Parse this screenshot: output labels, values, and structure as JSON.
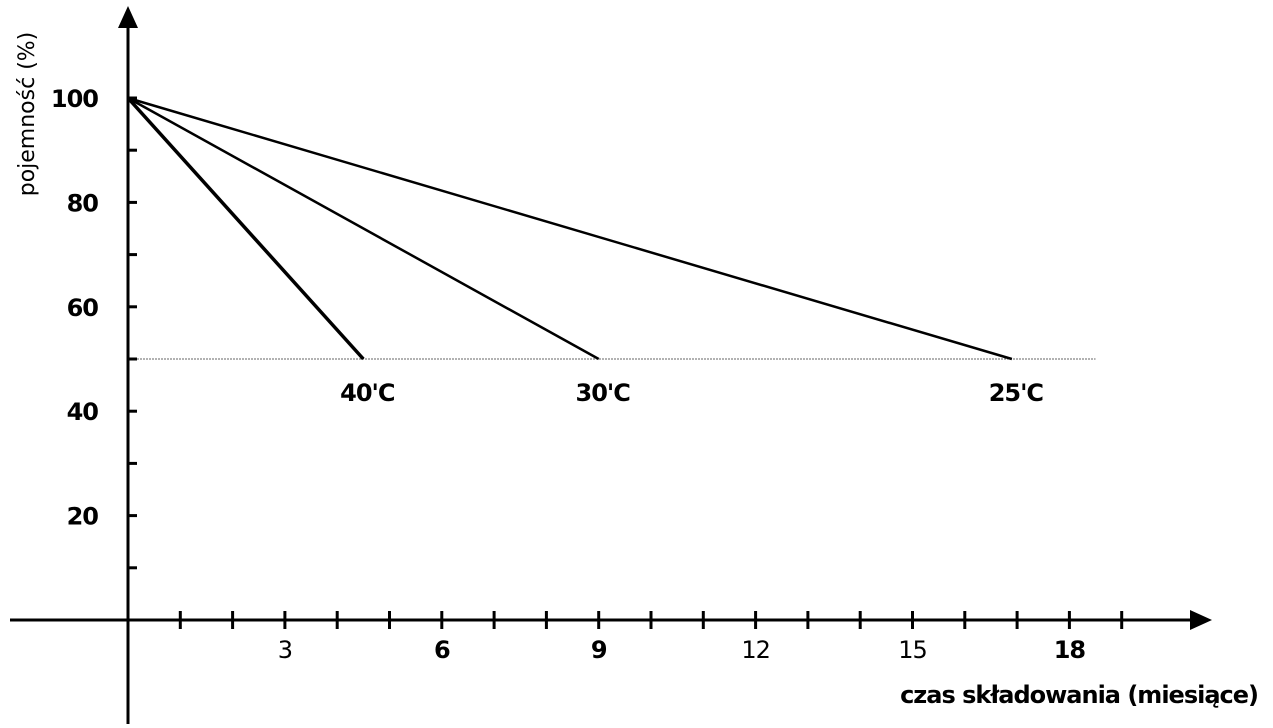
{
  "chart_data": {
    "type": "line",
    "xlabel": "czas składowania (miesiące)",
    "ylabel": "pojemność (%)",
    "xlim": [
      0,
      20
    ],
    "ylim": [
      0,
      115
    ],
    "x_tick_labels": [
      {
        "value": 3,
        "label": "3",
        "bold": false
      },
      {
        "value": 6,
        "label": "6",
        "bold": true
      },
      {
        "value": 9,
        "label": "9",
        "bold": true
      },
      {
        "value": 12,
        "label": "12",
        "bold": false
      },
      {
        "value": 15,
        "label": "15",
        "bold": false
      },
      {
        "value": 18,
        "label": "18",
        "bold": true
      }
    ],
    "x_minor_ticks": [
      1,
      2,
      3,
      4,
      5,
      6,
      7,
      8,
      9,
      10,
      11,
      12,
      13,
      14,
      15,
      16,
      17,
      18,
      19
    ],
    "y_tick_labels": [
      {
        "value": 100,
        "label": "100"
      },
      {
        "value": 80,
        "label": "80"
      },
      {
        "value": 60,
        "label": "60"
      },
      {
        "value": 40,
        "label": "40"
      },
      {
        "value": 20,
        "label": "20"
      }
    ],
    "y_minor_ticks": [
      10,
      20,
      30,
      40,
      50,
      60,
      70,
      80,
      90,
      100
    ],
    "reference_line": {
      "y": 50,
      "x_end": 18.5
    },
    "series": [
      {
        "name": "40'C",
        "x": [
          0,
          4.5
        ],
        "y": [
          100,
          50
        ],
        "stroke_width": 3.5
      },
      {
        "name": "30'C",
        "x": [
          0,
          9
        ],
        "y": [
          100,
          50
        ],
        "stroke_width": 2.5
      },
      {
        "name": "25'C",
        "x": [
          0,
          16.9
        ],
        "y": [
          100,
          50
        ],
        "stroke_width": 2.5
      }
    ]
  }
}
